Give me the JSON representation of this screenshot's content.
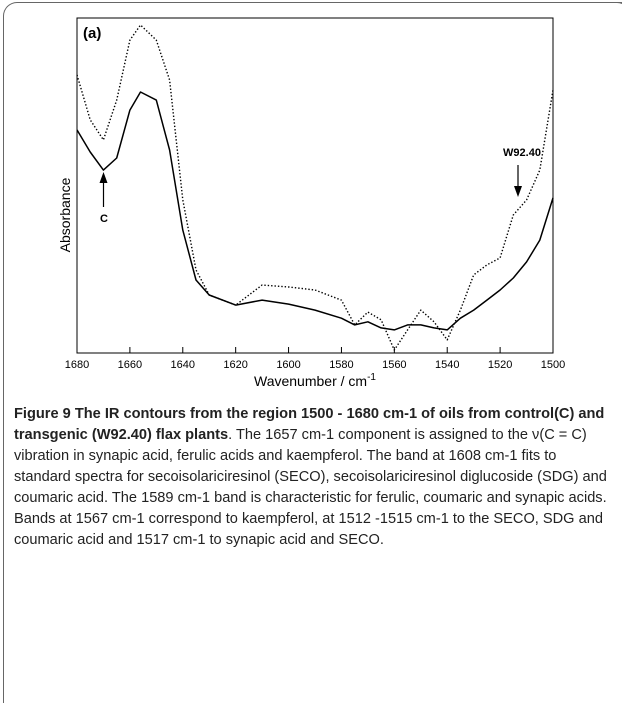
{
  "chart_data": {
    "type": "line",
    "panel_label": "(a)",
    "x_label": "Wavenumber / cm",
    "x_label_sup": "-1",
    "y_label": "Absorbance",
    "x": [
      1680,
      1675,
      1670,
      1665,
      1660,
      1656,
      1650,
      1645,
      1640,
      1635,
      1630,
      1620,
      1610,
      1600,
      1590,
      1580,
      1575,
      1570,
      1565,
      1560,
      1555,
      1550,
      1545,
      1540,
      1535,
      1530,
      1525,
      1520,
      1515,
      1510,
      1505,
      1500
    ],
    "series": [
      {
        "name": "C",
        "color": "#000000",
        "style": "solid",
        "values": [
          66.6,
          60,
          54.6,
          58.2,
          72.5,
          77.9,
          75.5,
          60.6,
          36.7,
          21.8,
          17.3,
          14.3,
          15.8,
          14.6,
          12.8,
          10.4,
          8.4,
          9.3,
          7.5,
          6.9,
          8.4,
          8.4,
          7.5,
          6.9,
          10.4,
          12.8,
          15.8,
          18.8,
          22.4,
          27.2,
          33.7,
          46.3
        ]
      },
      {
        "name": "W92.40",
        "color": "#000000",
        "style": "dotted",
        "values": [
          83,
          69.6,
          63.6,
          75.5,
          93.4,
          97.9,
          93.4,
          81.5,
          45.7,
          24.8,
          17.3,
          14.3,
          20.3,
          19.7,
          18.8,
          15.8,
          8.4,
          12.2,
          9.9,
          0.9,
          6.9,
          12.8,
          9.3,
          3.9,
          12.8,
          23.3,
          26.3,
          28.4,
          41.2,
          45.7,
          54.6,
          78.5
        ]
      }
    ],
    "xlim": [
      1680,
      1500
    ],
    "xticks": [
      1680,
      1660,
      1640,
      1620,
      1600,
      1580,
      1560,
      1540,
      1520,
      1500
    ],
    "ylim": [
      0,
      100
    ]
  },
  "caption": {
    "label": "Figure 9",
    "title": "The IR contours from the region 1500 - 1680 cm-1 of oils from control(C) and transgenic (W92.40) flax plants",
    "text": ". The 1657 cm-1 component is assigned to the ν(C = C) vibration in synapic acid, ferulic acids and kaempferol. The band at 1608 cm-1 fits to standard spectra for secoisolariciresinol (SECO), secoisolariciresinol diglucoside (SDG) and coumaric acid. The 1589 cm-1 band is characteristic for ferulic, coumaric and synapic acids. Bands at 1567 cm-1 correspond to kaempferol, at 1512 -1515 cm-1 to the SECO, SDG and coumaric acid and 1517 cm-1 to synapic acid and SECO."
  }
}
